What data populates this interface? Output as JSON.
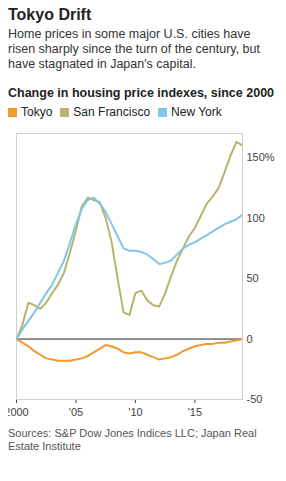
{
  "chart_data": {
    "type": "line",
    "title": "Tokyo Drift",
    "subtitle": "Home prices in some major U.S. cities have risen sharply since the turn of the century, but have stagnated in Japan's capital.",
    "chart_title": "Change in housing price indexes, since 2000",
    "source": "Sources: S&P Dow Jones Indices LLC; Japan Real Estate Institute",
    "x": [
      2000,
      2000.5,
      2001,
      2001.5,
      2002,
      2002.5,
      2003,
      2003.5,
      2004,
      2004.5,
      2005,
      2005.5,
      2006,
      2006.5,
      2007,
      2007.5,
      2008,
      2008.5,
      2009,
      2009.5,
      2010,
      2010.5,
      2011,
      2011.5,
      2012,
      2012.5,
      2013,
      2013.5,
      2014,
      2014.5,
      2015,
      2015.5,
      2016,
      2016.5,
      2017,
      2017.5,
      2018,
      2018.5,
      2019
    ],
    "series": [
      {
        "name": "Tokyo",
        "color": "#f29a2e",
        "values": [
          0,
          -3,
          -6,
          -10,
          -13,
          -16,
          -17,
          -18,
          -18,
          -18,
          -17,
          -16,
          -14,
          -11,
          -8,
          -5,
          -6,
          -8,
          -11,
          -12,
          -11,
          -11,
          -13,
          -15,
          -17,
          -16,
          -15,
          -13,
          -10,
          -8,
          -6,
          -5,
          -4,
          -4,
          -3,
          -3,
          -2,
          -1,
          0
        ]
      },
      {
        "name": "San Francisco",
        "color": "#bab36c",
        "values": [
          0,
          12,
          30,
          28,
          25,
          30,
          38,
          45,
          55,
          72,
          90,
          110,
          117,
          115,
          113,
          100,
          80,
          50,
          22,
          20,
          38,
          40,
          32,
          28,
          27,
          38,
          52,
          65,
          75,
          85,
          92,
          102,
          112,
          118,
          125,
          138,
          152,
          163,
          160
        ]
      },
      {
        "name": "New York",
        "color": "#80c6e6",
        "values": [
          0,
          8,
          15,
          22,
          30,
          38,
          45,
          55,
          65,
          80,
          95,
          108,
          115,
          117,
          112,
          105,
          95,
          85,
          75,
          73,
          73,
          72,
          70,
          66,
          62,
          63,
          65,
          70,
          75,
          78,
          80,
          83,
          86,
          89,
          92,
          95,
          97,
          99,
          103
        ]
      }
    ],
    "xlim": [
      2000,
      2019
    ],
    "xticks": [
      {
        "value": 2000,
        "label": "2000"
      },
      {
        "value": 2005,
        "label": "'05"
      },
      {
        "value": 2010,
        "label": "'10"
      },
      {
        "value": 2015,
        "label": "'15"
      }
    ],
    "ylim": [
      -50,
      170
    ],
    "yticks": [
      -50,
      0,
      50,
      100,
      {
        "value": 150,
        "label": "150%"
      }
    ],
    "grid": false,
    "legend": "top-left"
  }
}
